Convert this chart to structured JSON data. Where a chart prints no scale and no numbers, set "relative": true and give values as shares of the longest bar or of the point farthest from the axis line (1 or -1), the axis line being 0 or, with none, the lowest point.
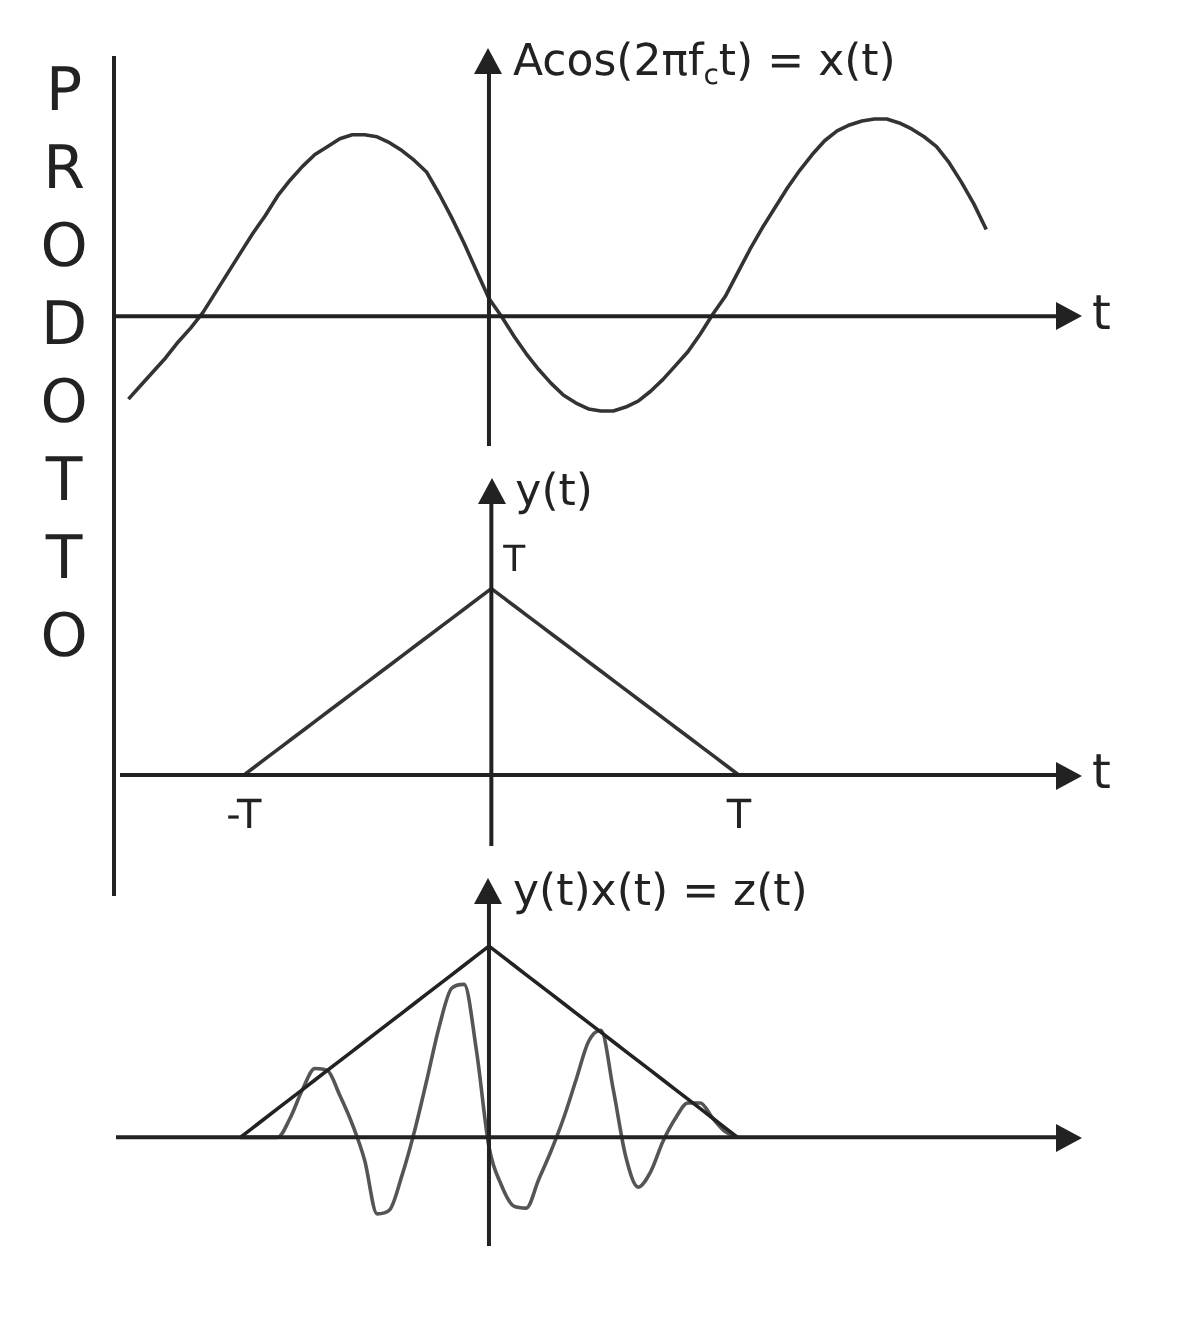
{
  "chart_data": [
    {
      "type": "line",
      "ylabel": "Acos(2πf$_{c}$t) = x(t)",
      "xlabel": "t",
      "relative": true,
      "tick_labels": false,
      "grid": false,
      "legend": false,
      "marker": "none",
      "line_style": "solid",
      "annotations": [
        "PRODOTTO"
      ],
      "categories": [
        null,
        null,
        null,
        null,
        null,
        null,
        null,
        null,
        null,
        null,
        null,
        null,
        null,
        null,
        null,
        null,
        null,
        null,
        null,
        null,
        null,
        null,
        null,
        null,
        null,
        null,
        null,
        null,
        null,
        null,
        null,
        null,
        null,
        null,
        null,
        null,
        null,
        null,
        null,
        null,
        null,
        null,
        null,
        null,
        null,
        null,
        null,
        null,
        null,
        null,
        null,
        null,
        null,
        null,
        null,
        null,
        null,
        null,
        null,
        null,
        null,
        null,
        null,
        null,
        null,
        null,
        null,
        null,
        null,
        null,
        null,
        null,
        null,
        null,
        null
      ],
      "series": [
        {
          "color": "#333333",
          "values": [
            null,
            -0.42,
            -0.35,
            -0.28,
            -0.21,
            -0.13,
            -0.06,
            0.02,
            0.12,
            0.22,
            0.32,
            0.42,
            0.51,
            0.61,
            0.69,
            0.76,
            0.82,
            0.86,
            0.9,
            0.92,
            0.92,
            0.91,
            0.88,
            0.84,
            0.79,
            0.73,
            0.62,
            0.5,
            0.37,
            0.23,
            0.09,
            0,
            -0.1,
            -0.19,
            -0.27,
            -0.34,
            -0.4,
            -0.44,
            -0.47,
            -0.48,
            -0.48,
            -0.46,
            -0.43,
            -0.38,
            -0.32,
            -0.25,
            -0.18,
            -0.09,
            0.01,
            0.1,
            0.22,
            0.34,
            0.45,
            0.55,
            0.65,
            0.74,
            0.82,
            0.89,
            0.94,
            0.97,
            0.99,
            1,
            1,
            0.98,
            0.95,
            0.91,
            0.86,
            0.78,
            0.68,
            0.57,
            0.44,
            null,
            null,
            null,
            null
          ]
        }
      ]
    },
    {
      "type": "line",
      "ylabel": "y(t)",
      "xlabel": "t",
      "relative": true,
      "tick_labels": "x",
      "grid": false,
      "legend": false,
      "marker": "none",
      "line_style": "solid",
      "annotations": [
        "T"
      ],
      "categories": [
        null,
        null,
        null,
        null,
        null,
        null,
        null,
        null,
        null,
        null,
        "-T",
        null,
        null,
        null,
        null,
        null,
        null,
        null,
        null,
        null,
        null,
        null,
        null,
        null,
        null,
        null,
        null,
        null,
        null,
        null,
        null,
        null,
        null,
        null,
        null,
        null,
        null,
        null,
        null,
        null,
        null,
        null,
        null,
        null,
        null,
        null,
        null,
        null,
        null,
        null,
        "T",
        null,
        null,
        null,
        null,
        null,
        null,
        null,
        null,
        null,
        null,
        null,
        null,
        null,
        null,
        null,
        null,
        null,
        null,
        null,
        null,
        null,
        null,
        null,
        null
      ],
      "series": [
        {
          "color": "#333333",
          "values": [
            null,
            null,
            null,
            null,
            null,
            null,
            null,
            null,
            null,
            null,
            0,
            0.05,
            0.1,
            0.15,
            0.2,
            0.25,
            0.3,
            0.35,
            0.4,
            0.45,
            0.5,
            0.55,
            0.6,
            0.65,
            0.7,
            0.75,
            0.8,
            0.85,
            0.9,
            0.95,
            1,
            0.95,
            0.9,
            0.85,
            0.8,
            0.75,
            0.7,
            0.65,
            0.6,
            0.55,
            0.5,
            0.45,
            0.4,
            0.35,
            0.3,
            0.25,
            0.2,
            0.15,
            0.1,
            0.05,
            0,
            null,
            null,
            null,
            null,
            null,
            null,
            null,
            null,
            null,
            null,
            null,
            null,
            null,
            null,
            null,
            null,
            null,
            null,
            null,
            null,
            null,
            null,
            null,
            null
          ]
        }
      ]
    },
    {
      "type": "line",
      "ylabel": "y(t)x(t) = z(t)",
      "relative": true,
      "tick_labels": false,
      "grid": false,
      "legend": false,
      "marker": "none",
      "line_style": "solid",
      "categories": [
        null,
        null,
        null,
        null,
        null,
        null,
        null,
        null,
        null,
        null,
        null,
        null,
        null,
        null,
        null,
        null,
        null,
        null,
        null,
        null,
        null,
        null,
        null,
        null,
        null,
        null,
        null,
        null,
        null,
        null,
        null,
        null,
        null,
        null,
        null,
        null,
        null,
        null,
        null,
        null,
        null,
        null,
        null,
        null,
        null,
        null,
        null,
        null,
        null,
        null,
        null,
        null,
        null,
        null,
        null,
        null,
        null,
        null,
        null,
        null,
        null,
        null,
        null,
        null,
        null,
        null,
        null,
        null,
        null,
        null,
        null,
        null,
        null,
        null,
        null
      ],
      "series": [
        {
          "color": "#222222",
          "values": [
            null,
            null,
            null,
            null,
            null,
            null,
            null,
            null,
            null,
            null,
            0,
            0.05,
            0.1,
            0.15,
            0.2,
            0.25,
            0.3,
            0.35,
            0.4,
            0.45,
            0.5,
            0.55,
            0.6,
            0.65,
            0.7,
            0.75,
            0.8,
            0.85,
            0.9,
            0.95,
            1,
            0.95,
            0.9,
            0.85,
            0.8,
            0.75,
            0.7,
            0.65,
            0.6,
            0.55,
            0.5,
            0.45,
            0.4,
            0.35,
            0.3,
            0.25,
            0.2,
            0.15,
            0.1,
            0.05,
            0,
            null,
            null,
            null,
            null,
            null,
            null,
            null,
            null,
            null,
            null,
            null,
            null,
            null,
            null,
            null,
            null,
            null,
            null,
            null,
            null,
            null,
            null,
            null,
            null
          ]
        },
        {
          "color": "#555555",
          "values": [
            null,
            null,
            null,
            null,
            null,
            null,
            null,
            null,
            null,
            null,
            0,
            0,
            0,
            0,
            0.1,
            0.25,
            0.36,
            0.35,
            0.22,
            0.07,
            -0.12,
            -0.4,
            -0.38,
            -0.2,
            0.03,
            0.3,
            0.58,
            0.78,
            0.8,
            0.45,
            -0.05,
            -0.25,
            -0.36,
            -0.37,
            -0.22,
            -0.07,
            0.1,
            0.3,
            0.5,
            0.56,
            0.25,
            -0.1,
            -0.26,
            -0.18,
            -0.02,
            0.1,
            0.18,
            0.18,
            0.1,
            0.03,
            0,
            null,
            null,
            null,
            null,
            null,
            null,
            null,
            null,
            null,
            null,
            null,
            null,
            null,
            null,
            null,
            null,
            null,
            null,
            null,
            null,
            null,
            null,
            null,
            null
          ]
        }
      ]
    }
  ]
}
